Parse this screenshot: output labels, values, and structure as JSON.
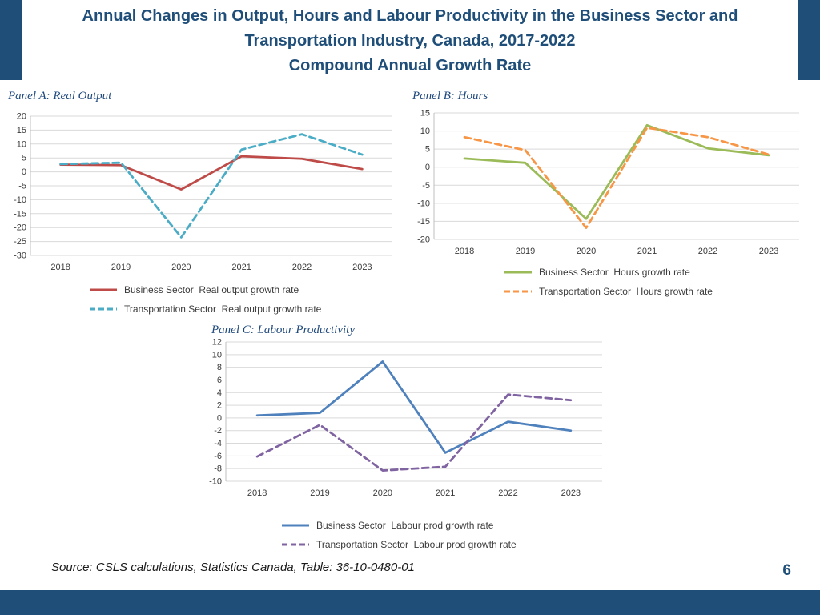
{
  "slide": {
    "title_lines": [
      "Annual Changes in Output, Hours and Labour Productivity in the Business Sector and",
      "Transportation Industry, Canada, 2017-2022",
      "Compound Annual Growth Rate"
    ],
    "source": "Source: CSLS calculations, Statistics Canada, Table: 36-10-0480-01",
    "page_number": "6",
    "accent_color": "#1F4E79"
  },
  "chart_data": [
    {
      "id": "panel-a",
      "panel_title": "Panel A: Real Output",
      "type": "line",
      "categories": [
        "2018",
        "2019",
        "2020",
        "2021",
        "2022",
        "2023"
      ],
      "ylim": [
        -30,
        20
      ],
      "ystep": 5,
      "grid": true,
      "legend_position": "bottom",
      "series": [
        {
          "name": "Business Sector  Real output growth rate",
          "color": "#BE4B48",
          "dashed": false,
          "values": [
            2.6,
            2.4,
            -6.3,
            5.6,
            4.7,
            1.0
          ]
        },
        {
          "name": "Transportation Sector  Real output growth rate",
          "color": "#4BACC6",
          "dashed": true,
          "values": [
            2.8,
            3.3,
            -23.5,
            8.0,
            13.5,
            6.2
          ]
        }
      ]
    },
    {
      "id": "panel-b",
      "panel_title": "Panel B: Hours",
      "type": "line",
      "categories": [
        "2018",
        "2019",
        "2020",
        "2021",
        "2022",
        "2023"
      ],
      "ylim": [
        -20,
        15
      ],
      "ystep": 5,
      "grid": true,
      "legend_position": "bottom",
      "series": [
        {
          "name": "Business Sector  Hours growth rate",
          "color": "#9BBB59",
          "dashed": false,
          "values": [
            2.4,
            1.2,
            -14.3,
            11.6,
            5.2,
            3.3
          ]
        },
        {
          "name": "Transportation Sector  Hours growth rate",
          "color": "#F79646",
          "dashed": true,
          "values": [
            8.3,
            4.7,
            -16.8,
            10.9,
            8.3,
            3.5
          ]
        }
      ]
    },
    {
      "id": "panel-c",
      "panel_title": "Panel C: Labour Productivity",
      "type": "line",
      "categories": [
        "2018",
        "2019",
        "2020",
        "2021",
        "2022",
        "2023"
      ],
      "ylim": [
        -10,
        12
      ],
      "ystep": 2,
      "grid": true,
      "legend_position": "bottom",
      "series": [
        {
          "name": "Business Sector  Labour prod growth rate",
          "color": "#4F81BD",
          "dashed": false,
          "values": [
            0.4,
            0.8,
            8.9,
            -5.5,
            -0.6,
            -2.0
          ]
        },
        {
          "name": "Transportation Sector  Labour prod growth rate",
          "color": "#8064A2",
          "dashed": true,
          "values": [
            -6.1,
            -1.1,
            -8.3,
            -7.7,
            3.7,
            2.8
          ]
        }
      ]
    }
  ]
}
